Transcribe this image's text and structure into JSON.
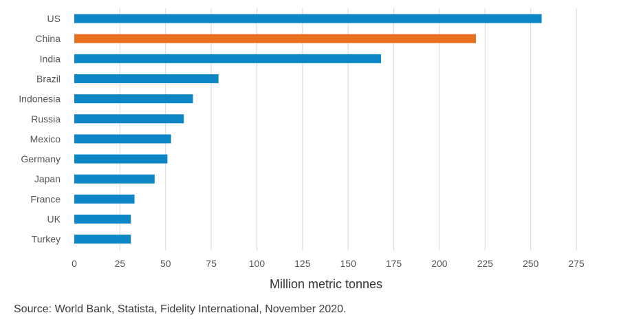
{
  "chart_data": {
    "type": "bar",
    "orientation": "horizontal",
    "categories": [
      "US",
      "China",
      "India",
      "Brazil",
      "Indonesia",
      "Russia",
      "Mexico",
      "Germany",
      "Japan",
      "France",
      "UK",
      "Turkey"
    ],
    "values": [
      256,
      220,
      168,
      79,
      65,
      60,
      53,
      51,
      44,
      33,
      31,
      31
    ],
    "highlight_category": "China",
    "colors": {
      "default": "#0c86c4",
      "highlight": "#e8701e",
      "grid": "#d9d9d9",
      "text": "#555555"
    },
    "xlabel": "Million metric tonnes",
    "xlim": [
      0,
      275
    ],
    "xticks": [
      "0",
      "25",
      "50",
      "75",
      "100",
      "125",
      "150",
      "175",
      "200",
      "225",
      "250",
      "275"
    ],
    "grid": "vertical"
  },
  "footer": {
    "source": "Source: World Bank, Statista, Fidelity International, November 2020."
  }
}
